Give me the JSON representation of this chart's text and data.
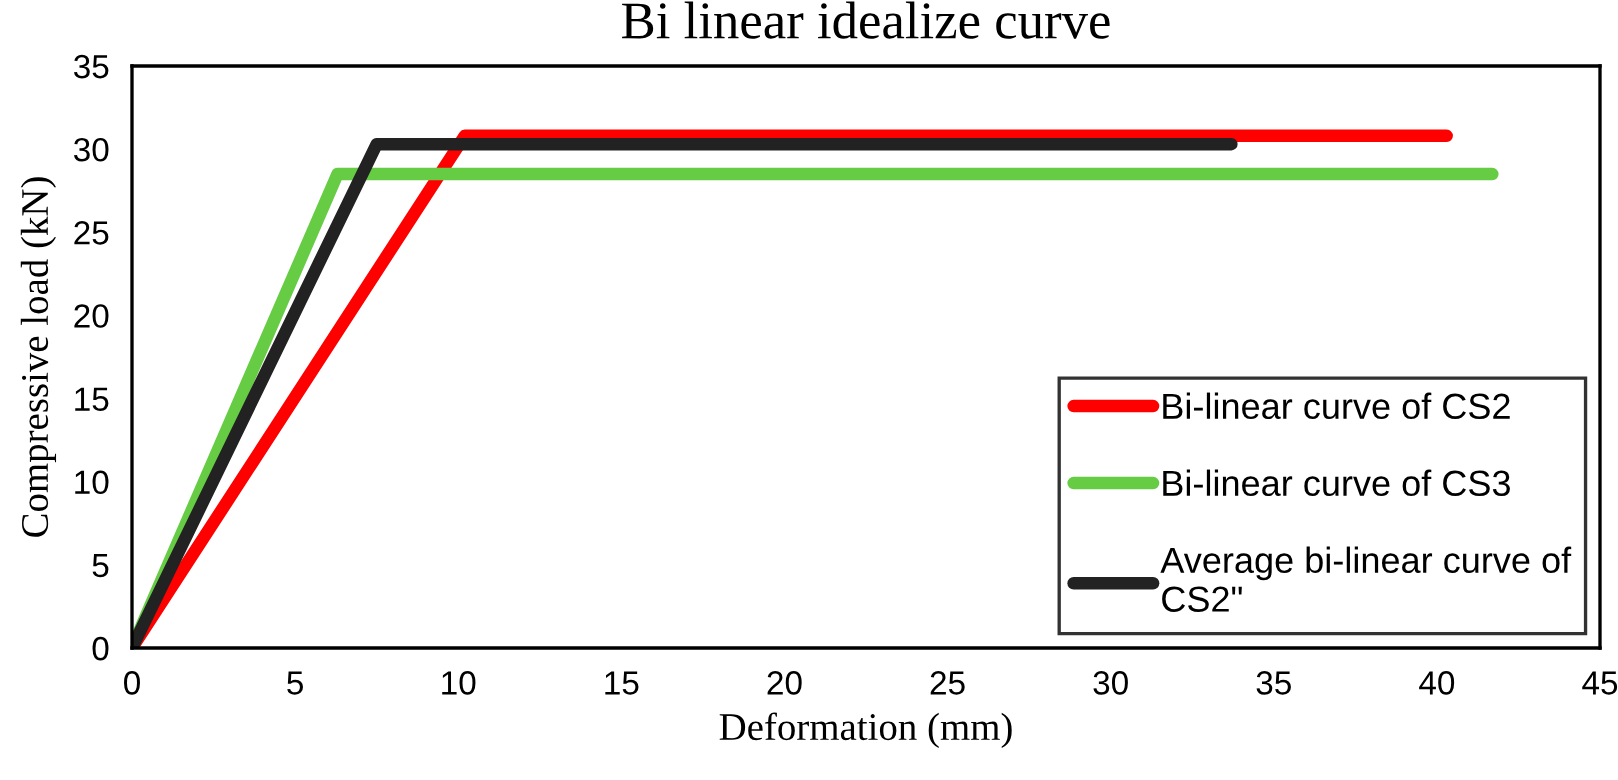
{
  "chart_data": {
    "type": "line",
    "title": "Bi linear idealize curve",
    "xlabel": "Deformation (mm)",
    "ylabel": "Compressive load (kN)",
    "xlim": [
      0,
      45
    ],
    "xticks": [
      0,
      5,
      10,
      15,
      20,
      25,
      30,
      35,
      40,
      45
    ],
    "ylim": [
      0,
      35
    ],
    "yticks": [
      0,
      5,
      10,
      15,
      20,
      25,
      30,
      35
    ],
    "grid": false,
    "legend": "bottom right",
    "marker": "none",
    "line_style": "solid",
    "series": [
      {
        "name": "Bi-linear curve of CS2",
        "color": "#ff0000",
        "x": [
          0,
          10.2,
          40.3
        ],
        "values": [
          0,
          30.8,
          30.8
        ]
      },
      {
        "name": "Bi-linear curve of CS3",
        "color": "#66cc44",
        "x": [
          0,
          6.3,
          41.7
        ],
        "values": [
          0,
          28.5,
          28.5
        ]
      },
      {
        "name": "Average bi-linear curve of CS2\"",
        "color": "#222222",
        "x": [
          0,
          7.5,
          33.7
        ],
        "values": [
          0,
          30.3,
          30.3
        ]
      }
    ]
  }
}
